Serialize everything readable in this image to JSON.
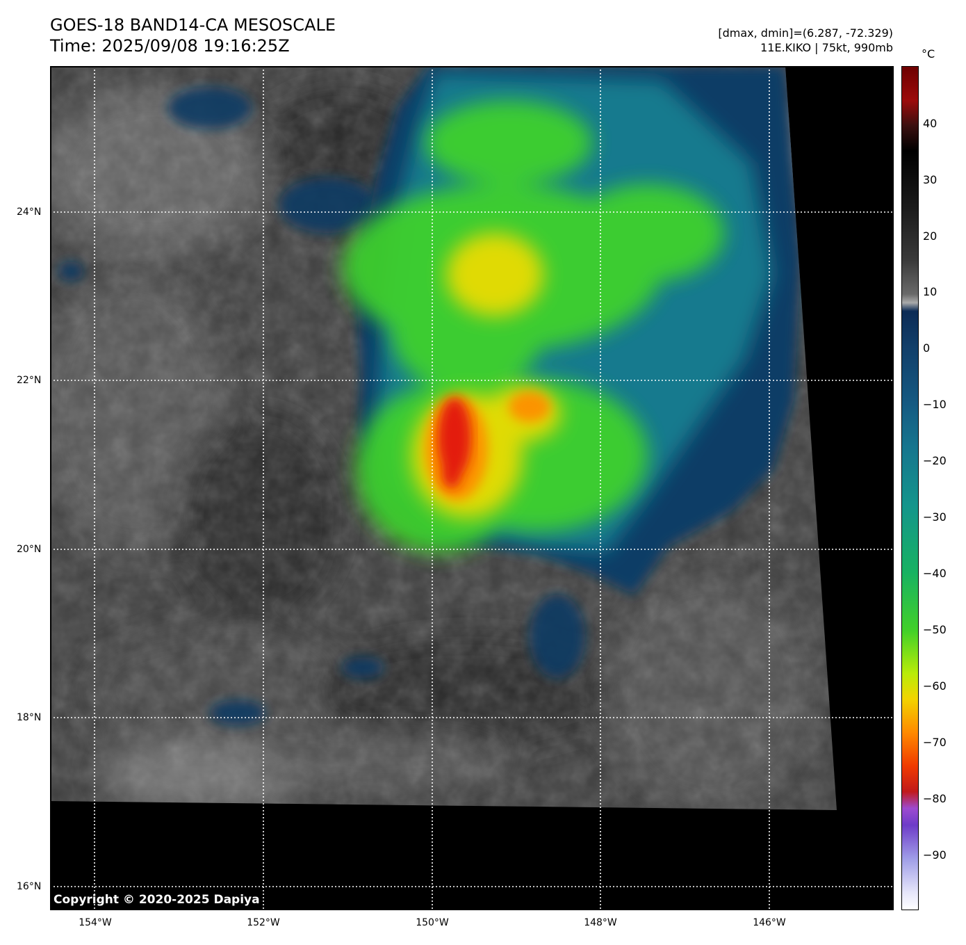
{
  "header": {
    "title_line1": "GOES-18 BAND14-CA MESOSCALE",
    "title_line2": "Time: 2025/09/08 19:16:25Z",
    "info_line1": "[dmax, dmin]=(6.287, -72.329)",
    "info_line2": "11E.KIKO | 75kt, 990mb"
  },
  "map": {
    "lat_labels": [
      "24°N",
      "22°N",
      "20°N",
      "18°N",
      "16°N"
    ],
    "lon_labels": [
      "154°W",
      "152°W",
      "150°W",
      "148°W",
      "146°W"
    ],
    "copyright": "Copyright © 2020-2025 Dapiya"
  },
  "colorbar": {
    "unit": "°C",
    "tick_labels": [
      "40",
      "30",
      "20",
      "10",
      "0",
      "−10",
      "−20",
      "−30",
      "−40",
      "−50",
      "−60",
      "−70",
      "−80",
      "−90"
    ],
    "colors": {
      "coldest_top": "#ff2a00",
      "cold": "#ffd200",
      "mid": "#3fe02a",
      "warm_cloud": "#0c4a73",
      "clear": "#3a3a3a",
      "nodata": "#000000"
    }
  }
}
